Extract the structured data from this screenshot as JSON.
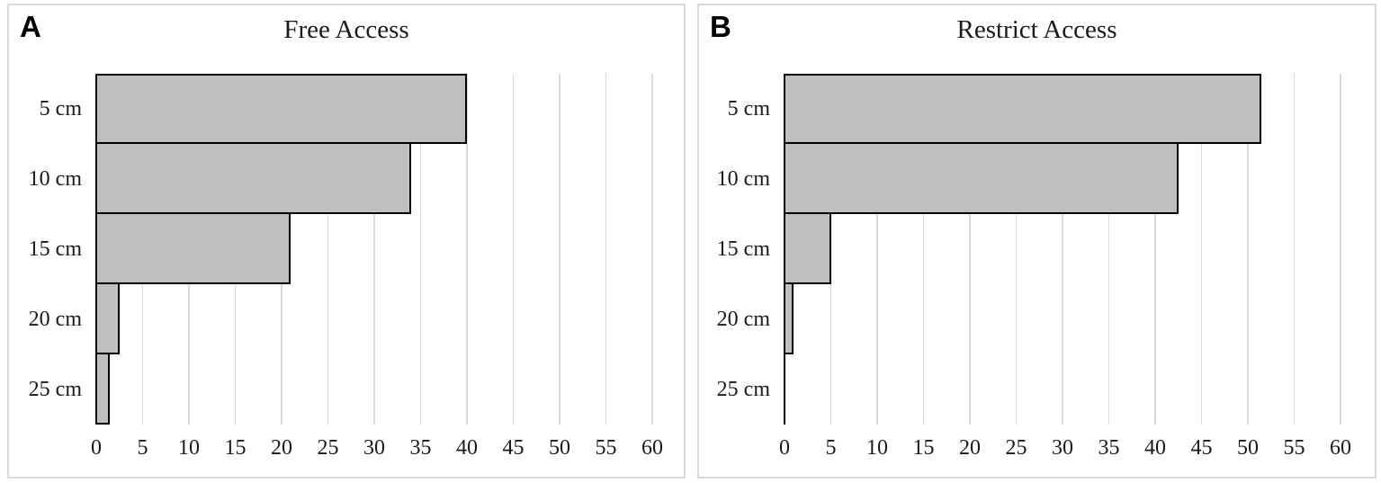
{
  "chart_data": [
    {
      "type": "bar",
      "orientation": "horizontal",
      "panel_label": "A",
      "title": "Free Access",
      "categories": [
        "5 cm",
        "10 cm",
        "15 cm",
        "20 cm",
        "25 cm"
      ],
      "values": [
        40,
        34,
        21,
        2.5,
        1.5
      ],
      "xlim": [
        0,
        60
      ],
      "xtick_step": 5,
      "xtick_labels": [
        "0",
        "5",
        "10",
        "15",
        "20",
        "25",
        "30",
        "35",
        "40",
        "45",
        "50",
        "55",
        "60"
      ],
      "grid": true,
      "legend": "none",
      "bar_color": "#bfbfbf",
      "bar_border_color": "#000000",
      "gridline_color": "#d9d9d9",
      "axis_color": "#000000"
    },
    {
      "type": "bar",
      "orientation": "horizontal",
      "panel_label": "B",
      "title": "Restrict Access",
      "categories": [
        "5 cm",
        "10 cm",
        "15 cm",
        "20 cm",
        "25 cm"
      ],
      "values": [
        51.5,
        42.5,
        5,
        1,
        0
      ],
      "xlim": [
        0,
        60
      ],
      "xtick_step": 5,
      "xtick_labels": [
        "0",
        "5",
        "10",
        "15",
        "20",
        "25",
        "30",
        "35",
        "40",
        "45",
        "50",
        "55",
        "60"
      ],
      "grid": true,
      "legend": "none",
      "bar_color": "#bfbfbf",
      "bar_border_color": "#000000",
      "gridline_color": "#d9d9d9",
      "axis_color": "#000000"
    }
  ]
}
